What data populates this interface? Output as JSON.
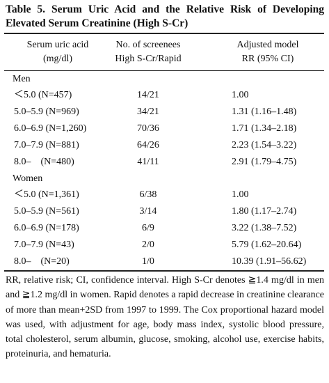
{
  "title": "Table 5.  Serum Uric Acid and the Relative Risk of Developing Elevated Serum Creatinine (High S-Cr)",
  "header": [
    [
      "Serum uric acid",
      "(mg/dl)"
    ],
    [
      "No. of screenees",
      "High S-Cr/Rapid"
    ],
    [
      "Adjusted model",
      "RR (95% CI)"
    ]
  ],
  "groups": [
    {
      "label": "Men",
      "rows": [
        [
          "＜5.0 (N=457)",
          "14/21",
          "1.00"
        ],
        [
          "5.0–5.9 (N=969)",
          "34/21",
          "1.31 (1.16–1.48)"
        ],
        [
          "6.0–6.9 (N=1,260)",
          "70/36",
          "1.71 (1.34–2.18)"
        ],
        [
          "7.0–7.9 (N=881)",
          "64/26",
          "2.23 (1.54–3.22)"
        ],
        [
          "8.0–    (N=480)",
          "41/11",
          "2.91 (1.79–4.75)"
        ]
      ]
    },
    {
      "label": "Women",
      "rows": [
        [
          "＜5.0 (N=1,361)",
          "6/38",
          "1.00"
        ],
        [
          "5.0–5.9 (N=561)",
          "3/14",
          "1.80 (1.17–2.74)"
        ],
        [
          "6.0–6.9 (N=178)",
          "6/9",
          "3.22 (1.38–7.52)"
        ],
        [
          "7.0–7.9 (N=43)",
          "2/0",
          "5.79 (1.62–20.64)"
        ],
        [
          "8.0–    (N=20)",
          "1/0",
          "10.39 (1.91–56.62)"
        ]
      ]
    }
  ],
  "footnote": "RR, relative risk; CI, confidence interval. High S-Cr denotes ≧1.4 mg/dl in men and ≧1.2 mg/dl in women. Rapid denotes a rapid decrease in creatinine clearance of more than mean+2SD from 1997 to 1999. The Cox proportional hazard model was used, with adjustment for age, body mass index, systolic blood pressure, total cholesterol, serum albumin, glucose, smoking, alcohol use, exercise habits, proteinuria, and hematuria."
}
